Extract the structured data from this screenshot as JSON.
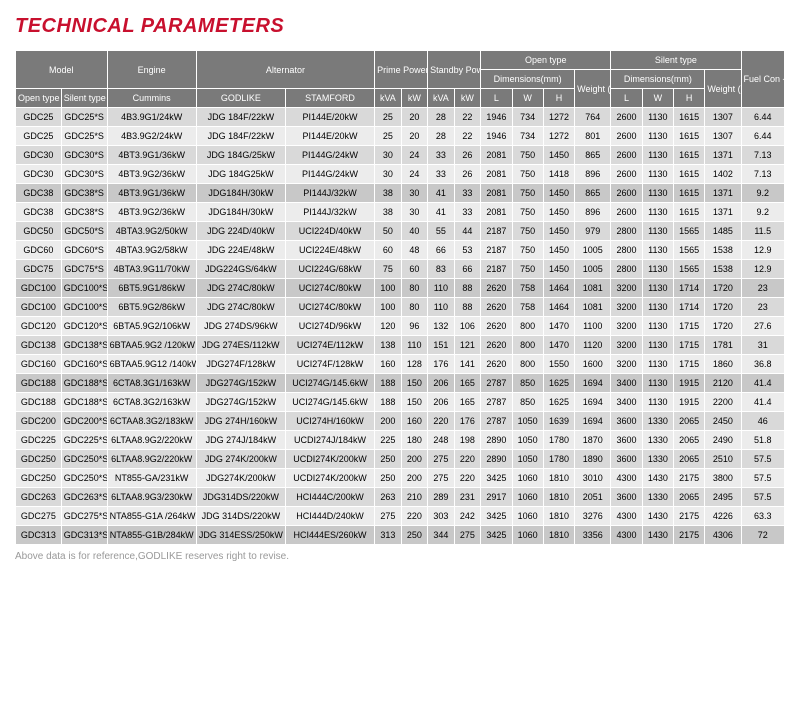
{
  "title": "TECHNICAL PARAMETERS",
  "footnote": "Above data is for reference,GODLIKE reserves right to revise.",
  "headers": {
    "model": "Model",
    "engine": "Engine",
    "alternator": "Alternator",
    "prime": "Prime Power",
    "standby": "Standby Power",
    "open_type_group": "Open type",
    "silent_type_group": "Silent type",
    "dims": "Dimensions(mm)",
    "weight": "Weight (kg)",
    "fuel": "Fuel Con -sumption (lir/hr)",
    "open_type": "Open type",
    "silent_type": "Silent type",
    "cummins": "Cummins",
    "godlike": "GODLIKE",
    "stamford": "STAMFORD",
    "kva": "kVA",
    "kw": "kW",
    "L": "L",
    "W": "W",
    "H": "H"
  },
  "rows": [
    {
      "ot": "GDC25",
      "st": "GDC25*S",
      "eng": "4B3.9G1/24kW",
      "god": "JDG 184F/22kW",
      "stam": "PI144E/20kW",
      "pkva": "25",
      "pkw": "20",
      "skva": "28",
      "skw": "22",
      "ol": "1946",
      "ow": "734",
      "oh": "1272",
      "owt": "764",
      "sl": "2600",
      "sw": "1130",
      "sh": "1615",
      "swt": "1307",
      "fc": "6.44"
    },
    {
      "ot": "GDC25",
      "st": "GDC25*S",
      "eng": "4B3.9G2/24kW",
      "god": "JDG 184F/22kW",
      "stam": "PI144E/20kW",
      "pkva": "25",
      "pkw": "20",
      "skva": "28",
      "skw": "22",
      "ol": "1946",
      "ow": "734",
      "oh": "1272",
      "owt": "801",
      "sl": "2600",
      "sw": "1130",
      "sh": "1615",
      "swt": "1307",
      "fc": "6.44"
    },
    {
      "ot": "GDC30",
      "st": "GDC30*S",
      "eng": "4BT3.9G1/36kW",
      "god": "JDG 184G/25kW",
      "stam": "PI144G/24kW",
      "pkva": "30",
      "pkw": "24",
      "skva": "33",
      "skw": "26",
      "ol": "2081",
      "ow": "750",
      "oh": "1450",
      "owt": "865",
      "sl": "2600",
      "sw": "1130",
      "sh": "1615",
      "swt": "1371",
      "fc": "7.13"
    },
    {
      "ot": "GDC30",
      "st": "GDC30*S",
      "eng": "4BT3.9G2/36kW",
      "god": "JDG 184G25kW",
      "stam": "PI144G/24kW",
      "pkva": "30",
      "pkw": "24",
      "skva": "33",
      "skw": "26",
      "ol": "2081",
      "ow": "750",
      "oh": "1418",
      "owt": "896",
      "sl": "2600",
      "sw": "1130",
      "sh": "1615",
      "swt": "1402",
      "fc": "7.13"
    },
    {
      "ot": "GDC38",
      "st": "GDC38*S",
      "eng": "4BT3.9G1/36kW",
      "god": "JDG184H/30kW",
      "stam": "PI144J/32kW",
      "pkva": "38",
      "pkw": "30",
      "skva": "41",
      "skw": "33",
      "ol": "2081",
      "ow": "750",
      "oh": "1450",
      "owt": "865",
      "sl": "2600",
      "sw": "1130",
      "sh": "1615",
      "swt": "1371",
      "fc": "9.2",
      "hl": true
    },
    {
      "ot": "GDC38",
      "st": "GDC38*S",
      "eng": "4BT3.9G2/36kW",
      "god": "JDG184H/30kW",
      "stam": "PI144J/32kW",
      "pkva": "38",
      "pkw": "30",
      "skva": "41",
      "skw": "33",
      "ol": "2081",
      "ow": "750",
      "oh": "1450",
      "owt": "896",
      "sl": "2600",
      "sw": "1130",
      "sh": "1615",
      "swt": "1371",
      "fc": "9.2"
    },
    {
      "ot": "GDC50",
      "st": "GDC50*S",
      "eng": "4BTA3.9G2/50kW",
      "god": "JDG 224D/40kW",
      "stam": "UCI224D/40kW",
      "pkva": "50",
      "pkw": "40",
      "skva": "55",
      "skw": "44",
      "ol": "2187",
      "ow": "750",
      "oh": "1450",
      "owt": "979",
      "sl": "2800",
      "sw": "1130",
      "sh": "1565",
      "swt": "1485",
      "fc": "11.5"
    },
    {
      "ot": "GDC60",
      "st": "GDC60*S",
      "eng": "4BTA3.9G2/58kW",
      "god": "JDG 224E/48kW",
      "stam": "UCI224E/48kW",
      "pkva": "60",
      "pkw": "48",
      "skva": "66",
      "skw": "53",
      "ol": "2187",
      "ow": "750",
      "oh": "1450",
      "owt": "1005",
      "sl": "2800",
      "sw": "1130",
      "sh": "1565",
      "swt": "1538",
      "fc": "12.9"
    },
    {
      "ot": "GDC75",
      "st": "GDC75*S",
      "eng": "4BTA3.9G11/70kW",
      "god": "JDG224GS/64kW",
      "stam": "UCI224G/68kW",
      "pkva": "75",
      "pkw": "60",
      "skva": "83",
      "skw": "66",
      "ol": "2187",
      "ow": "750",
      "oh": "1450",
      "owt": "1005",
      "sl": "2800",
      "sw": "1130",
      "sh": "1565",
      "swt": "1538",
      "fc": "12.9"
    },
    {
      "ot": "GDC100",
      "st": "GDC100*S",
      "eng": "6BT5.9G1/86kW",
      "god": "JDG 274C/80kW",
      "stam": "UCI274C/80kW",
      "pkva": "100",
      "pkw": "80",
      "skva": "110",
      "skw": "88",
      "ol": "2620",
      "ow": "758",
      "oh": "1464",
      "owt": "1081",
      "sl": "3200",
      "sw": "1130",
      "sh": "1714",
      "swt": "1720",
      "fc": "23",
      "hl": true
    },
    {
      "ot": "GDC100",
      "st": "GDC100*S",
      "eng": "6BT5.9G2/86kW",
      "god": "JDG 274C/80kW",
      "stam": "UCI274C/80kW",
      "pkva": "100",
      "pkw": "80",
      "skva": "110",
      "skw": "88",
      "ol": "2620",
      "ow": "758",
      "oh": "1464",
      "owt": "1081",
      "sl": "3200",
      "sw": "1130",
      "sh": "1714",
      "swt": "1720",
      "fc": "23"
    },
    {
      "ot": "GDC120",
      "st": "GDC120*S",
      "eng": "6BTA5.9G2/106kW",
      "god": "JDG 274DS/96kW",
      "stam": "UCI274D/96kW",
      "pkva": "120",
      "pkw": "96",
      "skva": "132",
      "skw": "106",
      "ol": "2620",
      "ow": "800",
      "oh": "1470",
      "owt": "1100",
      "sl": "3200",
      "sw": "1130",
      "sh": "1715",
      "swt": "1720",
      "fc": "27.6"
    },
    {
      "ot": "GDC138",
      "st": "GDC138*S",
      "eng": "6BTAA5.9G2 /120kW",
      "god": "JDG 274ES/112kW",
      "stam": "UCI274E/112kW",
      "pkva": "138",
      "pkw": "110",
      "skva": "151",
      "skw": "121",
      "ol": "2620",
      "ow": "800",
      "oh": "1470",
      "owt": "1120",
      "sl": "3200",
      "sw": "1130",
      "sh": "1715",
      "swt": "1781",
      "fc": "31"
    },
    {
      "ot": "GDC160",
      "st": "GDC160*S",
      "eng": "6BTAA5.9G12 /140kW",
      "god": "JDG274F/128kW",
      "stam": "UCI274F/128kW",
      "pkva": "160",
      "pkw": "128",
      "skva": "176",
      "skw": "141",
      "ol": "2620",
      "ow": "800",
      "oh": "1550",
      "owt": "1600",
      "sl": "3200",
      "sw": "1130",
      "sh": "1715",
      "swt": "1860",
      "fc": "36.8"
    },
    {
      "ot": "GDC188",
      "st": "GDC188*S",
      "eng": "6CTA8.3G1/163kW",
      "god": "JDG274G/152kW",
      "stam": "UCI274G/145.6kW",
      "pkva": "188",
      "pkw": "150",
      "skva": "206",
      "skw": "165",
      "ol": "2787",
      "ow": "850",
      "oh": "1625",
      "owt": "1694",
      "sl": "3400",
      "sw": "1130",
      "sh": "1915",
      "swt": "2120",
      "fc": "41.4",
      "hl": true
    },
    {
      "ot": "GDC188",
      "st": "GDC188*S",
      "eng": "6CTA8.3G2/163kW",
      "god": "JDG274G/152kW",
      "stam": "UCI274G/145.6kW",
      "pkva": "188",
      "pkw": "150",
      "skva": "206",
      "skw": "165",
      "ol": "2787",
      "ow": "850",
      "oh": "1625",
      "owt": "1694",
      "sl": "3400",
      "sw": "1130",
      "sh": "1915",
      "swt": "2200",
      "fc": "41.4"
    },
    {
      "ot": "GDC200",
      "st": "GDC200*S",
      "eng": "6CTAA8.3G2/183kW",
      "god": "JDG 274H/160kW",
      "stam": "UCI274H/160kW",
      "pkva": "200",
      "pkw": "160",
      "skva": "220",
      "skw": "176",
      "ol": "2787",
      "ow": "1050",
      "oh": "1639",
      "owt": "1694",
      "sl": "3600",
      "sw": "1330",
      "sh": "2065",
      "swt": "2450",
      "fc": "46"
    },
    {
      "ot": "GDC225",
      "st": "GDC225*S",
      "eng": "6LTAA8.9G2/220kW",
      "god": "JDG 274J/184kW",
      "stam": "UCDI274J/184kW",
      "pkva": "225",
      "pkw": "180",
      "skva": "248",
      "skw": "198",
      "ol": "2890",
      "ow": "1050",
      "oh": "1780",
      "owt": "1870",
      "sl": "3600",
      "sw": "1330",
      "sh": "2065",
      "swt": "2490",
      "fc": "51.8"
    },
    {
      "ot": "GDC250",
      "st": "GDC250*S",
      "eng": "6LTAA8.9G2/220kW",
      "god": "JDG 274K/200kW",
      "stam": "UCDI274K/200kW",
      "pkva": "250",
      "pkw": "200",
      "skva": "275",
      "skw": "220",
      "ol": "2890",
      "ow": "1050",
      "oh": "1780",
      "owt": "1890",
      "sl": "3600",
      "sw": "1330",
      "sh": "2065",
      "swt": "2510",
      "fc": "57.5"
    },
    {
      "ot": "GDC250",
      "st": "GDC250*S",
      "eng": "NT855-GA/231kW",
      "god": "JDG274K/200kW",
      "stam": "UCDI274K/200kW",
      "pkva": "250",
      "pkw": "200",
      "skva": "275",
      "skw": "220",
      "ol": "3425",
      "ow": "1060",
      "oh": "1810",
      "owt": "3010",
      "sl": "4300",
      "sw": "1430",
      "sh": "2175",
      "swt": "3800",
      "fc": "57.5"
    },
    {
      "ot": "GDC263",
      "st": "GDC263*S",
      "eng": "6LTAA8.9G3/230kW",
      "god": "JDG314DS/220kW",
      "stam": "HCI444C/200kW",
      "pkva": "263",
      "pkw": "210",
      "skva": "289",
      "skw": "231",
      "ol": "2917",
      "ow": "1060",
      "oh": "1810",
      "owt": "2051",
      "sl": "3600",
      "sw": "1330",
      "sh": "2065",
      "swt": "2495",
      "fc": "57.5"
    },
    {
      "ot": "GDC275",
      "st": "GDC275*S",
      "eng": "NTA855-G1A /264kW",
      "god": "JDG 314DS/220kW",
      "stam": "HCI444D/240kW",
      "pkva": "275",
      "pkw": "220",
      "skva": "303",
      "skw": "242",
      "ol": "3425",
      "ow": "1060",
      "oh": "1810",
      "owt": "3276",
      "sl": "4300",
      "sw": "1430",
      "sh": "2175",
      "swt": "4226",
      "fc": "63.3"
    },
    {
      "ot": "GDC313",
      "st": "GDC313*S",
      "eng": "NTA855-G1B/284kW",
      "god": "JDG 314ESS/250kW",
      "stam": "HCI444ES/260kW",
      "pkva": "313",
      "pkw": "250",
      "skva": "344",
      "skw": "275",
      "ol": "3425",
      "ow": "1060",
      "oh": "1810",
      "owt": "3356",
      "sl": "4300",
      "sw": "1430",
      "sh": "2175",
      "swt": "4306",
      "fc": "72",
      "hl": true
    }
  ]
}
